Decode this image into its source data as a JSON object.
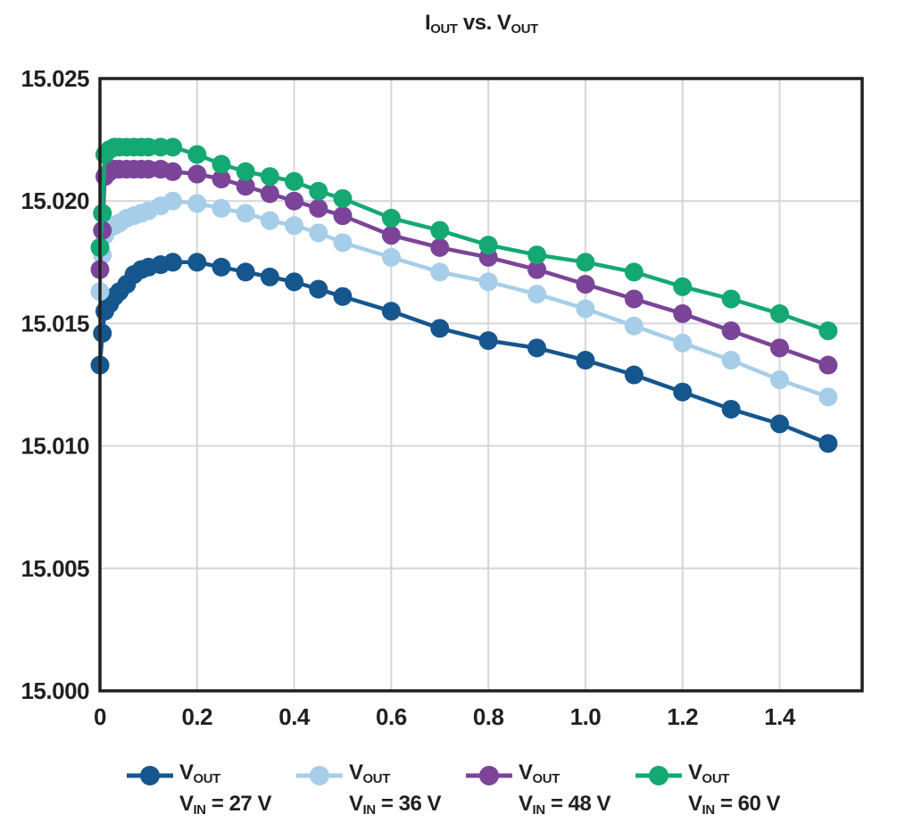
{
  "title": {
    "p0": "I",
    "p0_sub": "OUT",
    "p1": " vs. V",
    "p1_sub": "OUT"
  },
  "chart_data": {
    "type": "line",
    "title": "IOUT vs. VOUT",
    "xlabel": "",
    "ylabel": "",
    "grid": true,
    "legend_position": "bottom",
    "xlim": [
      0,
      1.57
    ],
    "ylim": [
      15.0,
      15.025
    ],
    "x_ticks": [
      0,
      0.2,
      0.4,
      0.6,
      0.8,
      1.0,
      1.2,
      1.4
    ],
    "x_tick_labels": [
      "0",
      "0.2",
      "0.4",
      "0.6",
      "0.8",
      "1.0",
      "1.2",
      "1.4"
    ],
    "y_ticks": [
      15.0,
      15.005,
      15.01,
      15.015,
      15.02,
      15.025
    ],
    "y_tick_labels": [
      "15.000",
      "15.005",
      "15.010",
      "15.015",
      "15.020",
      "15.025"
    ],
    "x": [
      0,
      0.005,
      0.01,
      0.02,
      0.03,
      0.04,
      0.055,
      0.07,
      0.085,
      0.1,
      0.125,
      0.15,
      0.2,
      0.25,
      0.3,
      0.35,
      0.4,
      0.45,
      0.5,
      0.6,
      0.7,
      0.8,
      0.9,
      1.0,
      1.1,
      1.2,
      1.3,
      1.4,
      1.5
    ],
    "series": [
      {
        "name": "VOUT VIN = 27 V",
        "color": "#16568e",
        "legend": {
          "main1": "V",
          "sub1": "OUT",
          "main2": "V",
          "sub2": "IN",
          "rest2": " = 27 V"
        },
        "values": [
          15.0133,
          15.0146,
          15.0155,
          15.0158,
          15.0161,
          15.0163,
          15.0166,
          15.017,
          15.0172,
          15.0173,
          15.0174,
          15.0175,
          15.0175,
          15.0173,
          15.0171,
          15.0169,
          15.0167,
          15.0164,
          15.0161,
          15.0155,
          15.0148,
          15.0143,
          15.014,
          15.0135,
          15.0129,
          15.0122,
          15.0115,
          15.0109,
          15.0101
        ]
      },
      {
        "name": "VOUT VIN = 36 V",
        "color": "#a6cee9",
        "legend": {
          "main1": "V",
          "sub1": "OUT",
          "main2": "V",
          "sub2": "IN",
          "rest2": " = 36 V"
        },
        "values": [
          15.0163,
          15.0178,
          15.0186,
          15.0189,
          15.019,
          15.0191,
          15.0193,
          15.0194,
          15.0195,
          15.0196,
          15.0198,
          15.02,
          15.0199,
          15.0197,
          15.0195,
          15.0192,
          15.019,
          15.0187,
          15.0183,
          15.0177,
          15.0171,
          15.0167,
          15.0162,
          15.0156,
          15.0149,
          15.0142,
          15.0135,
          15.0127,
          15.012
        ]
      },
      {
        "name": "VOUT VIN = 48 V",
        "color": "#7b4499",
        "legend": {
          "main1": "V",
          "sub1": "OUT",
          "main2": "V",
          "sub2": "IN",
          "rest2": " = 48 V"
        },
        "values": [
          15.0172,
          15.0188,
          15.021,
          15.0212,
          15.0213,
          15.0213,
          15.0213,
          15.0213,
          15.0213,
          15.0213,
          15.0213,
          15.0212,
          15.0211,
          15.0209,
          15.0206,
          15.0203,
          15.02,
          15.0197,
          15.0194,
          15.0186,
          15.0181,
          15.0177,
          15.0172,
          15.0166,
          15.016,
          15.0154,
          15.0147,
          15.014,
          15.0133
        ]
      },
      {
        "name": "VOUT VIN = 60 V",
        "color": "#14a873",
        "legend": {
          "main1": "V",
          "sub1": "OUT",
          "main2": "V",
          "sub2": "IN",
          "rest2": " = 60 V"
        },
        "values": [
          15.0181,
          15.0195,
          15.0219,
          15.0221,
          15.0222,
          15.0222,
          15.0222,
          15.0222,
          15.0222,
          15.0222,
          15.0222,
          15.0222,
          15.0219,
          15.0215,
          15.0212,
          15.021,
          15.0208,
          15.0204,
          15.0201,
          15.0193,
          15.0188,
          15.0182,
          15.0178,
          15.0175,
          15.0171,
          15.0165,
          15.016,
          15.0154,
          15.0147
        ]
      }
    ],
    "style": {
      "grid_color": "#d6d6d6",
      "frame_color": "#231f20",
      "text_color": "#231f20",
      "marker_radius": 10.5,
      "line_width": 4.5
    }
  }
}
